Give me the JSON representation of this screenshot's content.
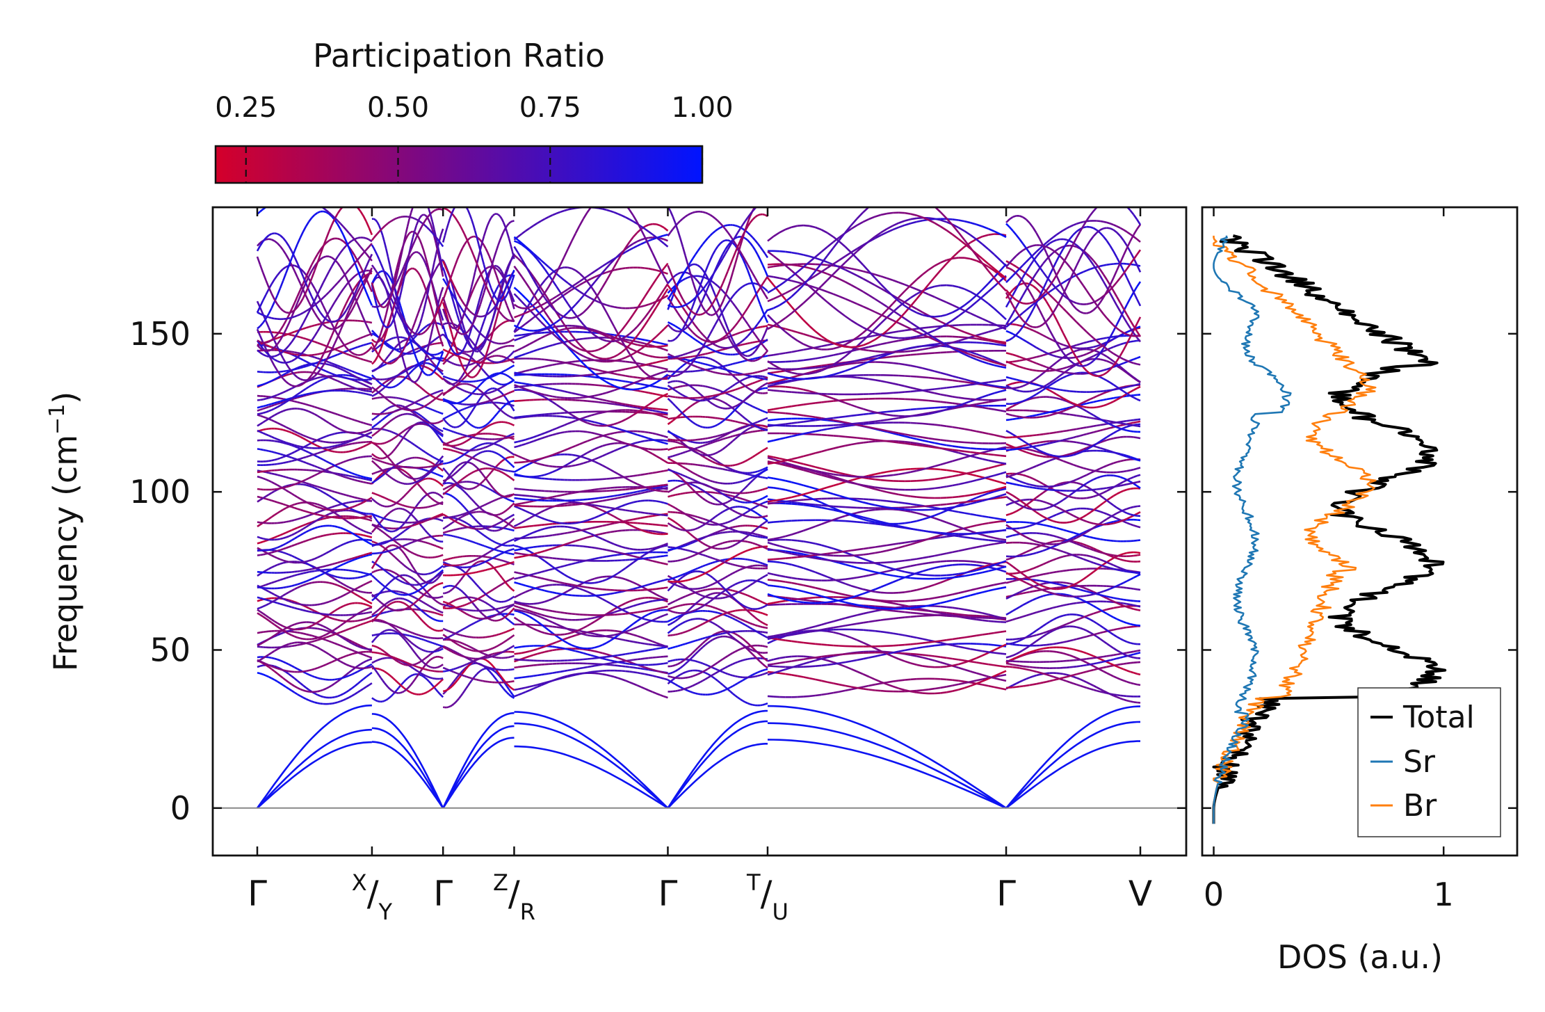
{
  "chart_data": [
    {
      "type": "line",
      "name": "phonon-band-structure",
      "ylabel": "Frequency (cm",
      "ylabel_sup": "−1",
      "ylabel_close": ")",
      "ylim": [
        -15,
        190
      ],
      "yticks": [
        0,
        50,
        100,
        150
      ],
      "ytick_labels": [
        "0",
        "50",
        "100",
        "150"
      ],
      "segments": [
        {
          "from": "Γ",
          "to": "X",
          "k_range": [
            0,
            1.0
          ]
        },
        {
          "from": "Y",
          "to": "Γ",
          "k_range": [
            1.0,
            1.62
          ]
        },
        {
          "from": "Γ",
          "to": "Z",
          "k_range": [
            1.62,
            2.24
          ]
        },
        {
          "from": "R",
          "to": "Γ",
          "k_range": [
            2.24,
            3.58
          ]
        },
        {
          "from": "Γ",
          "to": "T",
          "k_range": [
            3.58,
            4.45
          ]
        },
        {
          "from": "U",
          "to": "Γ",
          "k_range": [
            4.45,
            6.53
          ]
        },
        {
          "from": "Γ",
          "to": "V",
          "k_range": [
            6.53,
            7.7
          ]
        }
      ],
      "xticks": [
        0,
        1.0,
        1.62,
        2.24,
        3.58,
        4.45,
        6.53,
        7.7
      ],
      "xtick_labels": [
        {
          "main": "Γ"
        },
        {
          "top": "X",
          "bottom": "Y"
        },
        {
          "main": "Γ"
        },
        {
          "top": "Z",
          "bottom": "R"
        },
        {
          "main": "Γ"
        },
        {
          "top": "T",
          "bottom": "U"
        },
        {
          "main": "Γ"
        },
        {
          "main": "V"
        }
      ],
      "acoustic_max_frequency": 30,
      "optical_range": [
        36,
        180
      ],
      "zero_line": 0,
      "color_encoding": "participation_ratio"
    },
    {
      "type": "colorbar",
      "name": "participation-ratio-colorbar",
      "title": "Participation Ratio",
      "range": [
        0.2,
        1.0
      ],
      "ticks": [
        0.25,
        0.5,
        0.75,
        1.0
      ],
      "tick_labels": [
        "0.25",
        "0.50",
        "0.75",
        "1.00"
      ],
      "color_low": "#d4002a",
      "color_high": "#0014ff"
    },
    {
      "type": "line",
      "name": "density-of-states",
      "xlabel": "DOS (a.u.)",
      "xlim": [
        -0.05,
        1.32
      ],
      "xticks": [
        0,
        1
      ],
      "xtick_labels": [
        "0",
        "1"
      ],
      "ylim": [
        -15,
        190
      ],
      "series": [
        {
          "name": "Total",
          "color": "#000000"
        },
        {
          "name": "Sr",
          "color": "#1f77b4"
        },
        {
          "name": "Br",
          "color": "#ff7f0e"
        }
      ],
      "legend_position": "lower-right"
    }
  ]
}
